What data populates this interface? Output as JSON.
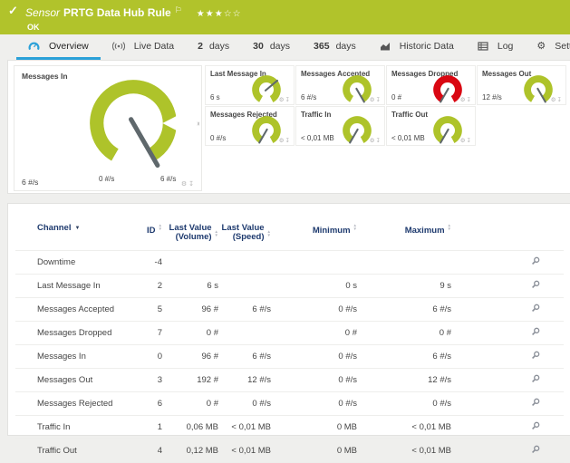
{
  "colors": {
    "brand_green": "#b1c32b",
    "gauge_green": "#aec32a",
    "gauge_red": "#d90712",
    "accent_blue": "#2aa0d8",
    "table_header_blue": "#1e3a6e"
  },
  "header": {
    "kind_label": "Sensor",
    "sensor_name": "PRTG Data Hub Rule",
    "status": "OK",
    "stars_filled": "★★★",
    "stars_empty": "☆☆"
  },
  "tabs": [
    {
      "bold": "",
      "label": "Overview"
    },
    {
      "bold": "",
      "label": "Live Data"
    },
    {
      "bold": "2",
      "label": "days"
    },
    {
      "bold": "30",
      "label": "days"
    },
    {
      "bold": "365",
      "label": "days"
    },
    {
      "bold": "",
      "label": "Historic Data"
    },
    {
      "bold": "",
      "label": "Log"
    },
    {
      "bold": "",
      "label": "Settings"
    }
  ],
  "main_gauge": {
    "title": "Messages In",
    "value": "6 #/s",
    "scale_min": "0 #/s",
    "scale_max": "6 #/s",
    "needle_deg": 150,
    "color": "#aec32a"
  },
  "small_gauges": [
    {
      "title": "Last Message In",
      "value": "6 s",
      "needle_deg": 50,
      "color": "#aec32a"
    },
    {
      "title": "Messages Accepted",
      "value": "6 #/s",
      "needle_deg": 150,
      "color": "#aec32a"
    },
    {
      "title": "Messages Dropped",
      "value": "0 #",
      "needle_deg": 210,
      "color": "#d90712"
    },
    {
      "title": "Messages Out",
      "value": "12 #/s",
      "needle_deg": 150,
      "color": "#aec32a"
    },
    {
      "title": "Messages Rejected",
      "value": "0 #/s",
      "needle_deg": 210,
      "color": "#aec32a"
    },
    {
      "title": "Traffic In",
      "value": "< 0,01 MB",
      "needle_deg": 210,
      "color": "#aec32a"
    },
    {
      "title": "Traffic Out",
      "value": "< 0,01 MB",
      "needle_deg": 210,
      "color": "#aec32a"
    }
  ],
  "table": {
    "columns": {
      "channel": "Channel",
      "id": "ID",
      "last_value_volume": "Last Value\n(Volume)",
      "last_value_speed": "Last Value\n(Speed)",
      "minimum": "Minimum",
      "maximum": "Maximum"
    },
    "rows": [
      {
        "channel": "Downtime",
        "id": "-4",
        "volume": "",
        "speed": "",
        "min": "",
        "max": ""
      },
      {
        "channel": "Last Message In",
        "id": "2",
        "volume": "6 s",
        "speed": "",
        "min": "0 s",
        "max": "9 s"
      },
      {
        "channel": "Messages Accepted",
        "id": "5",
        "volume": "96 #",
        "speed": "6 #/s",
        "min": "0 #/s",
        "max": "6 #/s"
      },
      {
        "channel": "Messages Dropped",
        "id": "7",
        "volume": "0 #",
        "speed": "",
        "min": "0 #",
        "max": "0 #"
      },
      {
        "channel": "Messages In",
        "id": "0",
        "volume": "96 #",
        "speed": "6 #/s",
        "min": "0 #/s",
        "max": "6 #/s"
      },
      {
        "channel": "Messages Out",
        "id": "3",
        "volume": "192 #",
        "speed": "12 #/s",
        "min": "0 #/s",
        "max": "12 #/s"
      },
      {
        "channel": "Messages Rejected",
        "id": "6",
        "volume": "0 #",
        "speed": "0 #/s",
        "min": "0 #/s",
        "max": "0 #/s"
      },
      {
        "channel": "Traffic In",
        "id": "1",
        "volume": "0,06 MB",
        "speed": "< 0,01 MB",
        "min": "0 MB",
        "max": "< 0,01 MB"
      },
      {
        "channel": "Traffic Out",
        "id": "4",
        "volume": "0,12 MB",
        "speed": "< 0,01 MB",
        "min": "0 MB",
        "max": "< 0,01 MB"
      }
    ]
  }
}
